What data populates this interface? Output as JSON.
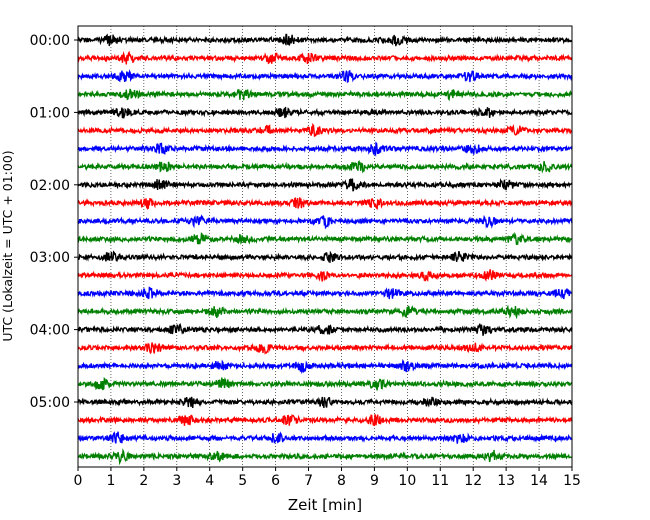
{
  "chart_data": {
    "type": "line",
    "title": "",
    "xlabel": "Zeit  [min]",
    "ylabel": "UTC (Lokalzeit = UTC + 01:00)",
    "xlim": [
      0,
      15
    ],
    "x_ticks": [
      "0",
      "1",
      "2",
      "3",
      "4",
      "5",
      "6",
      "7",
      "8",
      "9",
      "10",
      "11",
      "12",
      "13",
      "14",
      "15"
    ],
    "y_ticks": [
      "00:00",
      "01:00",
      "02:00",
      "03:00",
      "04:00",
      "05:00"
    ],
    "grid": "vertical dotted",
    "legend": "none",
    "row_interval_min": 15,
    "row_color_cycle": [
      "#000000",
      "#ff0000",
      "#0000ff",
      "#008000"
    ],
    "traces": [
      {
        "start": "00:00",
        "events_min": [
          1.0,
          6.4,
          9.7
        ]
      },
      {
        "start": "00:15",
        "events_min": [
          1.5,
          5.9,
          7.0
        ]
      },
      {
        "start": "00:30",
        "events_min": [
          1.4,
          8.2,
          11.9
        ]
      },
      {
        "start": "00:45",
        "events_min": [
          1.6,
          5.0,
          11.3
        ]
      },
      {
        "start": "01:00",
        "events_min": [
          1.4,
          6.2,
          12.4
        ]
      },
      {
        "start": "01:15",
        "events_min": [
          5.7,
          7.2,
          13.3
        ]
      },
      {
        "start": "01:30",
        "events_min": [
          2.5,
          9.0,
          12.0
        ]
      },
      {
        "start": "01:45",
        "events_min": [
          2.6,
          8.5,
          14.2
        ]
      },
      {
        "start": "02:00",
        "events_min": [
          2.5,
          8.3,
          13.0
        ]
      },
      {
        "start": "02:15",
        "events_min": [
          2.1,
          6.7,
          9.0
        ]
      },
      {
        "start": "02:30",
        "events_min": [
          3.6,
          7.5,
          12.5
        ]
      },
      {
        "start": "02:45",
        "events_min": [
          3.7,
          5.0,
          13.3
        ]
      },
      {
        "start": "03:00",
        "events_min": [
          1.0,
          7.7,
          11.6
        ]
      },
      {
        "start": "03:15",
        "events_min": [
          7.4,
          10.6,
          12.5
        ]
      },
      {
        "start": "03:30",
        "events_min": [
          2.2,
          9.5,
          14.7
        ]
      },
      {
        "start": "03:45",
        "events_min": [
          4.2,
          10.0,
          13.2
        ]
      },
      {
        "start": "04:00",
        "events_min": [
          3.0,
          7.5,
          12.3
        ]
      },
      {
        "start": "04:15",
        "events_min": [
          2.3,
          5.6,
          12.0
        ]
      },
      {
        "start": "04:30",
        "events_min": [
          4.3,
          6.8,
          10.0
        ]
      },
      {
        "start": "04:45",
        "events_min": [
          0.7,
          4.4,
          9.1
        ]
      },
      {
        "start": "05:00",
        "events_min": [
          3.4,
          7.5,
          10.7
        ]
      },
      {
        "start": "05:15",
        "events_min": [
          3.3,
          6.4,
          9.0
        ]
      },
      {
        "start": "05:30",
        "events_min": [
          1.2,
          6.0,
          11.6
        ]
      },
      {
        "start": "05:45",
        "events_min": [
          1.3,
          4.2,
          12.6
        ]
      }
    ]
  }
}
